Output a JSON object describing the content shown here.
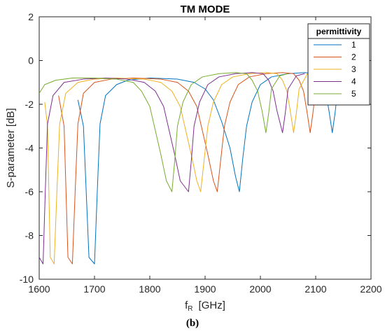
{
  "figure": {
    "caption": "(b)"
  },
  "chart_data": {
    "type": "line",
    "title": "TM MODE",
    "xlabel_main": "f",
    "xlabel_sub": "R",
    "xlabel_rest": "[GHz]",
    "ylabel": "S-parameter [dB]",
    "xlim": [
      1600,
      2200
    ],
    "ylim": [
      -10,
      2
    ],
    "xticks": [
      1600,
      1700,
      1800,
      1900,
      2000,
      2100,
      2200
    ],
    "yticks": [
      2,
      0,
      -2,
      -4,
      -6,
      -8,
      -10
    ],
    "grid": false,
    "legend": {
      "title": "permittivity",
      "position": "top-right"
    },
    "series": [
      {
        "name": "1",
        "color": "#0072BD",
        "points": [
          [
            1670,
            -1.8
          ],
          [
            1680,
            -3.0
          ],
          [
            1690,
            -9.0
          ],
          [
            1700,
            -9.3
          ],
          [
            1705,
            -6.0
          ],
          [
            1710,
            -2.9
          ],
          [
            1720,
            -1.6
          ],
          [
            1740,
            -1.1
          ],
          [
            1760,
            -0.9
          ],
          [
            1800,
            -0.8
          ],
          [
            1850,
            -0.85
          ],
          [
            1880,
            -1.0
          ],
          [
            1900,
            -1.3
          ],
          [
            1915,
            -1.8
          ],
          [
            1930,
            -2.8
          ],
          [
            1945,
            -4.0
          ],
          [
            1955,
            -5.3
          ],
          [
            1962,
            -6.0
          ],
          [
            1968,
            -4.5
          ],
          [
            1975,
            -3.0
          ],
          [
            1985,
            -1.9
          ],
          [
            2000,
            -1.1
          ],
          [
            2020,
            -0.75
          ],
          [
            2050,
            -0.6
          ],
          [
            2080,
            -0.55
          ],
          [
            2100,
            -0.6
          ],
          [
            2110,
            -0.9
          ],
          [
            2118,
            -1.4
          ],
          [
            2124,
            -2.3
          ],
          [
            2130,
            -3.3
          ],
          [
            2135,
            -2.4
          ],
          [
            2140,
            -1.3
          ]
        ]
      },
      {
        "name": "2",
        "color": "#D95319",
        "points": [
          [
            1635,
            -1.6
          ],
          [
            1645,
            -3.0
          ],
          [
            1652,
            -9.0
          ],
          [
            1660,
            -9.3
          ],
          [
            1665,
            -6.0
          ],
          [
            1670,
            -2.9
          ],
          [
            1680,
            -1.5
          ],
          [
            1700,
            -1.0
          ],
          [
            1730,
            -0.85
          ],
          [
            1770,
            -0.8
          ],
          [
            1820,
            -0.85
          ],
          [
            1850,
            -1.0
          ],
          [
            1870,
            -1.4
          ],
          [
            1885,
            -2.1
          ],
          [
            1895,
            -3.2
          ],
          [
            1905,
            -4.3
          ],
          [
            1915,
            -5.5
          ],
          [
            1922,
            -6.0
          ],
          [
            1928,
            -4.6
          ],
          [
            1935,
            -3.0
          ],
          [
            1945,
            -1.9
          ],
          [
            1960,
            -1.1
          ],
          [
            1980,
            -0.75
          ],
          [
            2010,
            -0.6
          ],
          [
            2040,
            -0.55
          ],
          [
            2060,
            -0.6
          ],
          [
            2070,
            -0.9
          ],
          [
            2078,
            -1.4
          ],
          [
            2084,
            -2.3
          ],
          [
            2090,
            -3.3
          ],
          [
            2095,
            -2.4
          ],
          [
            2100,
            -1.3
          ],
          [
            2110,
            -0.6
          ]
        ]
      },
      {
        "name": "3",
        "color": "#EDB120",
        "points": [
          [
            1610,
            -1.9
          ],
          [
            1615,
            -3.0
          ],
          [
            1620,
            -9.0
          ],
          [
            1627,
            -9.3
          ],
          [
            1632,
            -6.0
          ],
          [
            1637,
            -2.9
          ],
          [
            1648,
            -1.5
          ],
          [
            1670,
            -1.0
          ],
          [
            1700,
            -0.85
          ],
          [
            1740,
            -0.8
          ],
          [
            1790,
            -0.85
          ],
          [
            1820,
            -1.0
          ],
          [
            1840,
            -1.4
          ],
          [
            1855,
            -2.1
          ],
          [
            1865,
            -3.2
          ],
          [
            1875,
            -4.3
          ],
          [
            1885,
            -5.5
          ],
          [
            1892,
            -6.0
          ],
          [
            1898,
            -4.6
          ],
          [
            1905,
            -3.0
          ],
          [
            1915,
            -1.9
          ],
          [
            1930,
            -1.1
          ],
          [
            1950,
            -0.75
          ],
          [
            1980,
            -0.6
          ],
          [
            2010,
            -0.55
          ],
          [
            2030,
            -0.6
          ],
          [
            2040,
            -0.9
          ],
          [
            2048,
            -1.4
          ],
          [
            2054,
            -2.3
          ],
          [
            2060,
            -3.3
          ],
          [
            2065,
            -2.4
          ],
          [
            2070,
            -1.3
          ],
          [
            2085,
            -0.6
          ]
        ]
      },
      {
        "name": "4",
        "color": "#7E2F8E",
        "points": [
          [
            1600,
            -9.0
          ],
          [
            1607,
            -9.3
          ],
          [
            1611,
            -6.0
          ],
          [
            1615,
            -2.9
          ],
          [
            1625,
            -1.6
          ],
          [
            1645,
            -1.0
          ],
          [
            1680,
            -0.85
          ],
          [
            1720,
            -0.8
          ],
          [
            1760,
            -0.85
          ],
          [
            1790,
            -1.0
          ],
          [
            1810,
            -1.4
          ],
          [
            1825,
            -2.1
          ],
          [
            1835,
            -3.2
          ],
          [
            1845,
            -4.3
          ],
          [
            1855,
            -5.5
          ],
          [
            1870,
            -6.0
          ],
          [
            1875,
            -4.6
          ],
          [
            1880,
            -3.0
          ],
          [
            1890,
            -1.9
          ],
          [
            1905,
            -1.1
          ],
          [
            1925,
            -0.75
          ],
          [
            1955,
            -0.6
          ],
          [
            1985,
            -0.55
          ],
          [
            2005,
            -0.6
          ],
          [
            2015,
            -0.9
          ],
          [
            2023,
            -1.4
          ],
          [
            2030,
            -2.3
          ],
          [
            2040,
            -3.3
          ],
          [
            2045,
            -2.4
          ],
          [
            2050,
            -1.3
          ],
          [
            2065,
            -0.7
          ],
          [
            2080,
            -0.6
          ]
        ]
      },
      {
        "name": "5",
        "color": "#77AC30",
        "points": [
          [
            1600,
            -1.5
          ],
          [
            1610,
            -1.1
          ],
          [
            1630,
            -0.9
          ],
          [
            1660,
            -0.8
          ],
          [
            1700,
            -0.8
          ],
          [
            1740,
            -0.85
          ],
          [
            1770,
            -1.0
          ],
          [
            1785,
            -1.4
          ],
          [
            1800,
            -2.1
          ],
          [
            1810,
            -3.2
          ],
          [
            1820,
            -4.3
          ],
          [
            1830,
            -5.5
          ],
          [
            1840,
            -6.0
          ],
          [
            1845,
            -4.6
          ],
          [
            1850,
            -3.0
          ],
          [
            1860,
            -1.9
          ],
          [
            1875,
            -1.1
          ],
          [
            1895,
            -0.75
          ],
          [
            1925,
            -0.6
          ],
          [
            1955,
            -0.55
          ],
          [
            1975,
            -0.6
          ],
          [
            1985,
            -0.9
          ],
          [
            1995,
            -1.4
          ],
          [
            2003,
            -2.3
          ],
          [
            2010,
            -3.3
          ],
          [
            2015,
            -2.4
          ],
          [
            2020,
            -1.3
          ],
          [
            2035,
            -0.7
          ],
          [
            2050,
            -0.6
          ]
        ]
      }
    ]
  }
}
